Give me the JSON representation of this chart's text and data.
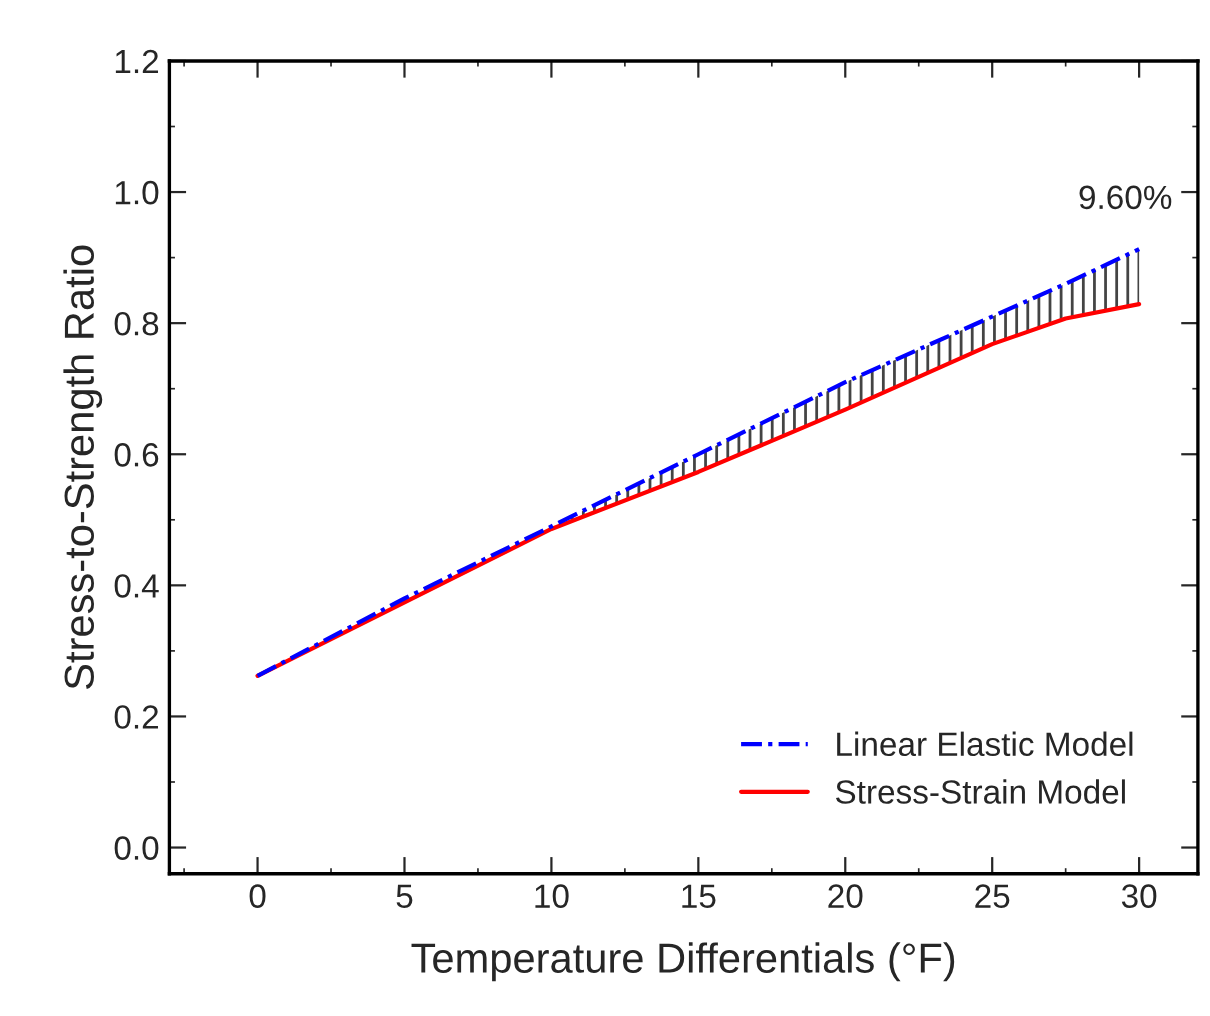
{
  "chart_data": {
    "type": "line",
    "xlabel": "Temperature Differentials (°F)",
    "ylabel": "Stress-to-Strength Ratio",
    "x": [
      0,
      5,
      10,
      15,
      20,
      25,
      27.5,
      30
    ],
    "series": [
      {
        "name": "Linear Elastic Model",
        "color": "#0000ff",
        "line_style": "dashdot",
        "values": [
          0.262,
          0.38,
          0.49,
          0.6,
          0.71,
          0.81,
          0.86,
          0.913
        ],
        "upper": [
          0.262,
          0.38,
          0.49,
          0.6,
          0.71,
          0.81,
          0.86,
          0.913
        ],
        "lower": [
          0.262,
          0.374,
          0.486,
          0.573,
          0.668,
          0.768,
          0.807,
          0.829
        ]
      },
      {
        "name": "Stress-Strain Model",
        "color": "#ff0000",
        "line_style": "solid",
        "values": [
          0.262,
          0.374,
          0.486,
          0.573,
          0.668,
          0.768,
          0.807,
          0.829
        ]
      }
    ],
    "annotations": [
      {
        "text": "9.60%",
        "x": 30,
        "y": 0.913
      }
    ],
    "xlim": [
      -3,
      32
    ],
    "xticks": [
      0,
      5,
      10,
      15,
      20,
      25,
      30
    ],
    "ylim": [
      -0.04,
      1.2
    ],
    "yticks": [
      {
        "value": 0,
        "label": "0.0"
      },
      0.2,
      0.4,
      0.6,
      0.8,
      {
        "value": 1,
        "label": "1.0"
      },
      {
        "value": 1.2,
        "label": "1.2"
      }
    ],
    "grid": false,
    "legend": "bottom right",
    "marker": "none"
  }
}
